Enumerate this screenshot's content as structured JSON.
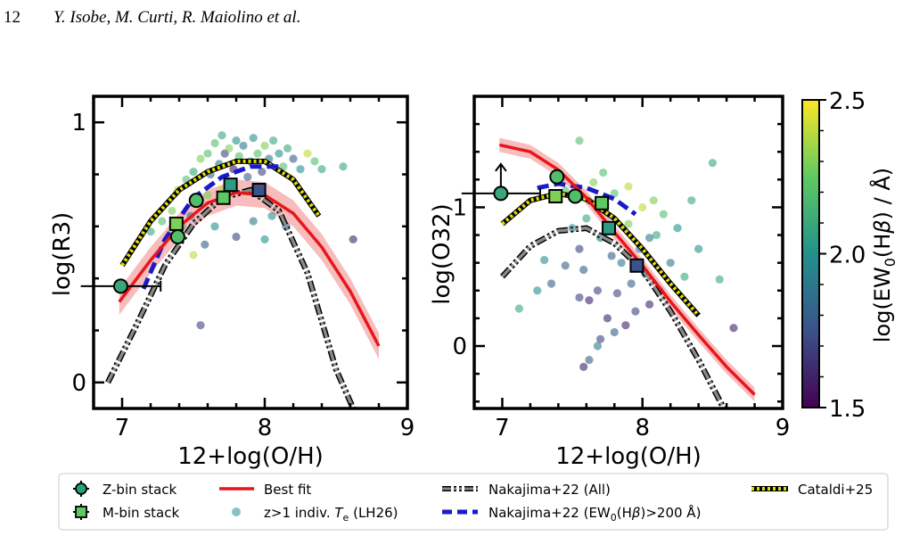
{
  "header": {
    "page_number": "12",
    "authors": "Y. Isobe, M. Curti, R. Maiolino et al."
  },
  "colors": {
    "best_fit": "#e8161a",
    "best_fit_band": "#f4a5a5",
    "nakajima_all": "#555555",
    "nakajima_ew": "#1a1ac8",
    "cataldi": "#e0e000",
    "colormap": [
      "#440154",
      "#3b528b",
      "#21918c",
      "#5ec962",
      "#fde725"
    ]
  },
  "legend": {
    "items": [
      {
        "key": "zbin",
        "label": "Z-bin stack"
      },
      {
        "key": "mbin",
        "label": "M-bin stack"
      },
      {
        "key": "bestfit",
        "label": "Best fit"
      },
      {
        "key": "indiv",
        "label": "z>1 indiv. ",
        "sub": "T",
        "subscript": "e",
        "tail": " (LH26)"
      },
      {
        "key": "nak_all",
        "label": "Nakajima+22 (All)"
      },
      {
        "key": "nak_ew",
        "label": "Nakajima+22 (EW",
        "sub_idx": "0",
        "mid": "(H",
        "beta": "β",
        "tail": ")>200 Å)"
      },
      {
        "key": "cataldi",
        "label": "Cataldi+25"
      }
    ]
  },
  "colorbar": {
    "label_pre": "log(EW",
    "label_sub": "0",
    "label_mid": "(H",
    "label_beta": "β",
    "label_post": ") / Å)",
    "ticks": [
      "1.5",
      "2.0",
      "2.5"
    ],
    "range": [
      1.5,
      2.5
    ]
  },
  "chart_data": [
    {
      "type": "scatter",
      "panel": "left",
      "xlabel": "12+log(O/H)",
      "ylabel": "log(R3)",
      "xlim": [
        6.8,
        9.0
      ],
      "ylim": [
        -0.1,
        1.1
      ],
      "xticks": [
        "7",
        "8",
        "9"
      ],
      "yticks": [
        "0",
        "1"
      ],
      "zbin_stack": [
        {
          "x": 6.99,
          "y": 0.37,
          "xerr": 0.28,
          "ew": 2.1
        },
        {
          "x": 7.39,
          "y": 0.56,
          "ew": 2.2
        },
        {
          "x": 7.52,
          "y": 0.7,
          "ew": 2.2
        }
      ],
      "mbin_stack": [
        {
          "x": 7.38,
          "y": 0.61,
          "ew": 2.3
        },
        {
          "x": 7.71,
          "y": 0.71,
          "ew": 2.25
        },
        {
          "x": 7.76,
          "y": 0.76,
          "ew": 2.05
        },
        {
          "x": 7.96,
          "y": 0.74,
          "ew": 1.75
        }
      ],
      "best_fit": {
        "x": [
          6.98,
          7.2,
          7.4,
          7.6,
          7.8,
          8.0,
          8.2,
          8.4,
          8.6,
          8.8
        ],
        "y": [
          0.31,
          0.47,
          0.6,
          0.69,
          0.73,
          0.72,
          0.65,
          0.52,
          0.35,
          0.14
        ]
      },
      "nakajima_all": {
        "x": [
          6.9,
          7.1,
          7.3,
          7.5,
          7.7,
          7.9,
          8.1,
          8.3,
          8.5,
          8.62
        ],
        "y": [
          0.0,
          0.22,
          0.45,
          0.61,
          0.71,
          0.74,
          0.66,
          0.42,
          0.05,
          -0.1
        ]
      },
      "nakajima_ew": {
        "x": [
          7.15,
          7.3,
          7.5,
          7.7,
          7.9,
          8.1
        ],
        "y": [
          0.36,
          0.55,
          0.71,
          0.79,
          0.83,
          0.83
        ]
      },
      "cataldi": {
        "x": [
          7.0,
          7.2,
          7.4,
          7.6,
          7.8,
          8.0,
          8.2,
          8.38
        ],
        "y": [
          0.45,
          0.62,
          0.74,
          0.81,
          0.85,
          0.85,
          0.78,
          0.64
        ]
      },
      "individual": [
        {
          "x": 7.39,
          "y": 0.74,
          "ew": 2.4
        },
        {
          "x": 7.45,
          "y": 0.78,
          "ew": 2.2
        },
        {
          "x": 7.5,
          "y": 0.81,
          "ew": 2.1
        },
        {
          "x": 7.55,
          "y": 0.86,
          "ew": 2.3
        },
        {
          "x": 7.6,
          "y": 0.88,
          "ew": 2.2
        },
        {
          "x": 7.62,
          "y": 0.8,
          "ew": 1.8
        },
        {
          "x": 7.65,
          "y": 0.92,
          "ew": 2.2
        },
        {
          "x": 7.68,
          "y": 0.84,
          "ew": 1.9
        },
        {
          "x": 7.7,
          "y": 0.95,
          "ew": 2.1
        },
        {
          "x": 7.72,
          "y": 0.88,
          "ew": 1.7
        },
        {
          "x": 7.75,
          "y": 0.9,
          "ew": 2.3
        },
        {
          "x": 7.78,
          "y": 0.82,
          "ew": 1.6
        },
        {
          "x": 7.8,
          "y": 0.93,
          "ew": 2.0
        },
        {
          "x": 7.82,
          "y": 0.87,
          "ew": 2.2
        },
        {
          "x": 7.85,
          "y": 0.91,
          "ew": 1.9
        },
        {
          "x": 7.88,
          "y": 0.79,
          "ew": 1.8
        },
        {
          "x": 7.9,
          "y": 0.85,
          "ew": 2.1
        },
        {
          "x": 7.92,
          "y": 0.94,
          "ew": 2.0
        },
        {
          "x": 7.95,
          "y": 0.88,
          "ew": 2.2
        },
        {
          "x": 7.98,
          "y": 0.81,
          "ew": 1.7
        },
        {
          "x": 8.0,
          "y": 0.91,
          "ew": 2.3
        },
        {
          "x": 8.03,
          "y": 0.86,
          "ew": 1.9
        },
        {
          "x": 8.06,
          "y": 0.93,
          "ew": 2.1
        },
        {
          "x": 8.1,
          "y": 0.88,
          "ew": 2.0
        },
        {
          "x": 8.13,
          "y": 0.83,
          "ew": 2.2
        },
        {
          "x": 8.16,
          "y": 0.9,
          "ew": 2.1
        },
        {
          "x": 8.2,
          "y": 0.86,
          "ew": 1.8
        },
        {
          "x": 8.25,
          "y": 0.82,
          "ew": 2.0
        },
        {
          "x": 8.3,
          "y": 0.88,
          "ew": 2.4
        },
        {
          "x": 8.35,
          "y": 0.85,
          "ew": 2.2
        },
        {
          "x": 8.4,
          "y": 0.82,
          "ew": 2.1
        },
        {
          "x": 8.55,
          "y": 0.83,
          "ew": 2.1
        },
        {
          "x": 8.62,
          "y": 0.55,
          "ew": 1.6
        },
        {
          "x": 7.35,
          "y": 0.66,
          "ew": 2.3
        },
        {
          "x": 7.42,
          "y": 0.6,
          "ew": 2.1
        },
        {
          "x": 7.48,
          "y": 0.64,
          "ew": 1.9
        },
        {
          "x": 7.58,
          "y": 0.53,
          "ew": 1.8
        },
        {
          "x": 7.65,
          "y": 0.6,
          "ew": 2.0
        },
        {
          "x": 7.8,
          "y": 0.56,
          "ew": 1.7
        },
        {
          "x": 7.92,
          "y": 0.62,
          "ew": 1.9
        },
        {
          "x": 8.05,
          "y": 0.64,
          "ew": 2.0
        },
        {
          "x": 7.2,
          "y": 0.58,
          "ew": 2.1
        },
        {
          "x": 7.28,
          "y": 0.62,
          "ew": 2.2
        },
        {
          "x": 7.55,
          "y": 0.22,
          "ew": 1.7
        },
        {
          "x": 7.5,
          "y": 0.49,
          "ew": 2.4
        },
        {
          "x": 7.6,
          "y": 0.72,
          "ew": 2.3
        },
        {
          "x": 7.7,
          "y": 0.74,
          "ew": 2.4
        },
        {
          "x": 8.0,
          "y": 0.55,
          "ew": 2.0
        },
        {
          "x": 8.15,
          "y": 0.6,
          "ew": 1.8
        }
      ]
    },
    {
      "type": "scatter",
      "panel": "right",
      "xlabel": "12+log(O/H)",
      "ylabel": "log(O32)",
      "xlim": [
        6.8,
        9.0
      ],
      "ylim": [
        -0.45,
        1.8
      ],
      "xticks": [
        "7",
        "8",
        "9"
      ],
      "yticks": [
        "0",
        "1"
      ],
      "zbin_stack": [
        {
          "x": 6.99,
          "y": 1.1,
          "xerr": 0.28,
          "lower_limit": true,
          "ew": 2.1
        },
        {
          "x": 7.39,
          "y": 1.22,
          "ew": 2.2
        },
        {
          "x": 7.52,
          "y": 1.08,
          "ew": 2.2
        }
      ],
      "mbin_stack": [
        {
          "x": 7.38,
          "y": 1.08,
          "ew": 2.3
        },
        {
          "x": 7.71,
          "y": 1.03,
          "ew": 2.25
        },
        {
          "x": 7.76,
          "y": 0.85,
          "ew": 2.05
        },
        {
          "x": 7.96,
          "y": 0.58,
          "ew": 1.75
        }
      ],
      "best_fit": {
        "x": [
          6.98,
          7.2,
          7.4,
          7.6,
          7.8,
          8.0,
          8.2,
          8.4,
          8.6,
          8.8
        ],
        "y": [
          1.45,
          1.4,
          1.27,
          1.07,
          0.82,
          0.58,
          0.32,
          0.08,
          -0.15,
          -0.35
        ]
      },
      "nakajima_all": {
        "x": [
          7.0,
          7.2,
          7.4,
          7.6,
          7.8,
          8.0,
          8.2,
          8.4,
          8.58
        ],
        "y": [
          0.5,
          0.72,
          0.83,
          0.85,
          0.74,
          0.55,
          0.25,
          -0.1,
          -0.45
        ]
      },
      "nakajima_ew": {
        "x": [
          7.25,
          7.4,
          7.6,
          7.8,
          7.95
        ],
        "y": [
          1.14,
          1.17,
          1.14,
          1.06,
          0.95
        ]
      },
      "cataldi": {
        "x": [
          7.0,
          7.2,
          7.4,
          7.6,
          7.8,
          8.0,
          8.2,
          8.4
        ],
        "y": [
          0.88,
          1.05,
          1.1,
          1.06,
          0.92,
          0.7,
          0.45,
          0.22
        ]
      },
      "individual": [
        {
          "x": 7.12,
          "y": 0.27,
          "ew": 2.1
        },
        {
          "x": 7.25,
          "y": 0.4,
          "ew": 2.0
        },
        {
          "x": 7.35,
          "y": 0.45,
          "ew": 1.8
        },
        {
          "x": 7.4,
          "y": 1.25,
          "ew": 2.3
        },
        {
          "x": 7.45,
          "y": 1.12,
          "ew": 2.2
        },
        {
          "x": 7.55,
          "y": 1.48,
          "ew": 2.2
        },
        {
          "x": 7.5,
          "y": 0.85,
          "ew": 2.0
        },
        {
          "x": 7.55,
          "y": 0.7,
          "ew": 1.7
        },
        {
          "x": 7.58,
          "y": 0.55,
          "ew": 1.8
        },
        {
          "x": 7.6,
          "y": 0.92,
          "ew": 2.1
        },
        {
          "x": 7.62,
          "y": 0.33,
          "ew": 1.6
        },
        {
          "x": 7.65,
          "y": 1.18,
          "ew": 2.3
        },
        {
          "x": 7.68,
          "y": 0.4,
          "ew": 1.7
        },
        {
          "x": 7.7,
          "y": 0.78,
          "ew": 1.9
        },
        {
          "x": 7.72,
          "y": 1.25,
          "ew": 2.2
        },
        {
          "x": 7.75,
          "y": 0.2,
          "ew": 1.6
        },
        {
          "x": 7.78,
          "y": 0.65,
          "ew": 1.8
        },
        {
          "x": 7.8,
          "y": 1.1,
          "ew": 2.2
        },
        {
          "x": 7.82,
          "y": 0.38,
          "ew": 1.7
        },
        {
          "x": 7.85,
          "y": 0.6,
          "ew": 1.9
        },
        {
          "x": 7.88,
          "y": 0.15,
          "ew": 1.6
        },
        {
          "x": 7.9,
          "y": 1.15,
          "ew": 2.4
        },
        {
          "x": 7.92,
          "y": 0.45,
          "ew": 1.8
        },
        {
          "x": 7.95,
          "y": 0.25,
          "ew": 1.7
        },
        {
          "x": 7.98,
          "y": 0.7,
          "ew": 1.9
        },
        {
          "x": 8.0,
          "y": 1.0,
          "ew": 2.4
        },
        {
          "x": 8.02,
          "y": 0.52,
          "ew": 2.0
        },
        {
          "x": 8.05,
          "y": 0.3,
          "ew": 1.6
        },
        {
          "x": 8.08,
          "y": 1.05,
          "ew": 2.3
        },
        {
          "x": 8.1,
          "y": 0.8,
          "ew": 2.1
        },
        {
          "x": 8.12,
          "y": 0.4,
          "ew": 1.8
        },
        {
          "x": 8.15,
          "y": 0.95,
          "ew": 2.2
        },
        {
          "x": 8.2,
          "y": 0.6,
          "ew": 1.9
        },
        {
          "x": 8.25,
          "y": 0.85,
          "ew": 2.0
        },
        {
          "x": 8.3,
          "y": 0.5,
          "ew": 2.1
        },
        {
          "x": 8.35,
          "y": 1.05,
          "ew": 2.1
        },
        {
          "x": 8.4,
          "y": 0.7,
          "ew": 2.0
        },
        {
          "x": 8.5,
          "y": 1.32,
          "ew": 2.1
        },
        {
          "x": 8.55,
          "y": 0.48,
          "ew": 2.1
        },
        {
          "x": 8.65,
          "y": 0.13,
          "ew": 1.6
        },
        {
          "x": 7.58,
          "y": -0.15,
          "ew": 1.6
        },
        {
          "x": 7.62,
          "y": -0.1,
          "ew": 1.8
        },
        {
          "x": 7.7,
          "y": 0.05,
          "ew": 1.7
        },
        {
          "x": 7.8,
          "y": 0.1,
          "ew": 1.8
        },
        {
          "x": 7.68,
          "y": 0.0,
          "ew": 1.9
        },
        {
          "x": 7.55,
          "y": 0.35,
          "ew": 1.7
        },
        {
          "x": 7.45,
          "y": 0.58,
          "ew": 1.8
        },
        {
          "x": 7.3,
          "y": 0.62,
          "ew": 2.0
        },
        {
          "x": 7.9,
          "y": 0.88,
          "ew": 2.3
        },
        {
          "x": 8.05,
          "y": 0.78,
          "ew": 1.9
        }
      ]
    }
  ]
}
